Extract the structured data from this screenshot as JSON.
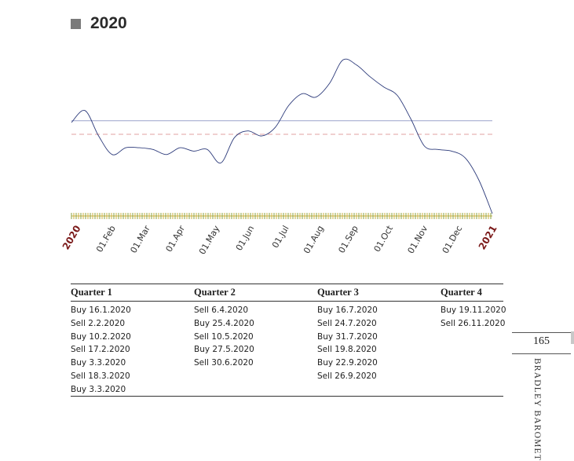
{
  "heading": {
    "title": "2020"
  },
  "chart_data": {
    "type": "line",
    "title": "2020",
    "x_tick_labels": [
      "2020",
      "01.Feb",
      "01.Mar",
      "01.Apr",
      "01.May",
      "01.Jun",
      "01.Jul",
      "01.Aug",
      "01.Sep",
      "01.Oct",
      "01.Nov",
      "01.Dec",
      "2021"
    ],
    "series": [
      {
        "values": [
          0.54,
          0.61,
          0.46,
          0.35,
          0.39,
          0.39,
          0.38,
          0.35,
          0.39,
          0.37,
          0.38,
          0.3,
          0.45,
          0.49,
          0.46,
          0.51,
          0.64,
          0.71,
          0.69,
          0.77,
          0.91,
          0.88,
          0.81,
          0.75,
          0.7,
          0.56,
          0.4,
          0.38,
          0.37,
          0.33,
          0.2,
          0.0
        ]
      }
    ],
    "reference_lines": [
      {
        "style": "solid",
        "color": "#9aa3cc",
        "value": 0.55
      },
      {
        "style": "dashed",
        "color": "#e0a0a0",
        "value": 0.47
      }
    ],
    "ylim": [
      0,
      1
    ],
    "grid": false
  },
  "table": {
    "quarters": [
      {
        "header": "Quarter 1",
        "entries": [
          "Buy 16.1.2020",
          "Sell 2.2.2020",
          "Buy 10.2.2020",
          "Sell 17.2.2020",
          "Buy 3.3.2020",
          "Sell 18.3.2020",
          "Buy 3.3.2020"
        ]
      },
      {
        "header": "Quarter 2",
        "entries": [
          "Sell 6.4.2020",
          "Buy 25.4.2020",
          "Sell 10.5.2020",
          "Buy 27.5.2020",
          "Sell 30.6.2020"
        ]
      },
      {
        "header": "Quarter 3",
        "entries": [
          "Buy 16.7.2020",
          "Sell 24.7.2020",
          "Buy 31.7.2020",
          "Sell 19.8.2020",
          "Buy 22.9.2020",
          "Sell 26.9.2020"
        ]
      },
      {
        "header": "Quarter 4",
        "entries": [
          "Buy 19.11.2020",
          "Sell 26.11.2020"
        ]
      }
    ]
  },
  "sidebar": {
    "page_number": "165",
    "running_title": "BRADLEY BAROMETE"
  },
  "colors": {
    "line": "#2c3a7a",
    "axis_tick_green": "#8aa040",
    "axis_tick_yellow": "#c8b040",
    "year_label": "#7b1a1a"
  }
}
